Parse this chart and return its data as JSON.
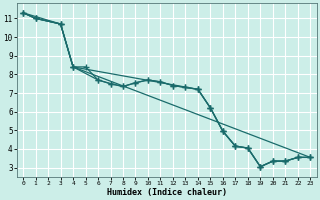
{
  "xlabel": "Humidex (Indice chaleur)",
  "xlim": [
    -0.5,
    23.5
  ],
  "ylim": [
    2.5,
    11.8
  ],
  "xticks": [
    0,
    1,
    2,
    3,
    4,
    5,
    6,
    7,
    8,
    9,
    10,
    11,
    12,
    13,
    14,
    15,
    16,
    17,
    18,
    19,
    20,
    21,
    22,
    23
  ],
  "yticks": [
    3,
    4,
    5,
    6,
    7,
    8,
    9,
    10,
    11
  ],
  "bg_color": "#cceee8",
  "line_color": "#1a6b6b",
  "grid_white_color": "#ffffff",
  "grid_pink_color": "#ddbbb8",
  "line1": {
    "x": [
      0,
      1,
      3,
      4,
      5,
      6,
      7,
      8,
      9,
      10,
      11,
      12,
      13,
      14,
      15,
      16,
      17,
      18,
      19,
      20,
      21,
      22,
      23
    ],
    "y": [
      11.3,
      11.0,
      10.7,
      8.4,
      8.4,
      7.7,
      7.5,
      7.35,
      7.55,
      7.7,
      7.6,
      7.4,
      7.3,
      7.2,
      6.2,
      4.95,
      4.15,
      4.05,
      3.05,
      3.35,
      3.35,
      3.55,
      3.55
    ]
  },
  "line2": {
    "x": [
      0,
      1,
      3,
      4,
      6,
      7,
      8,
      9,
      10,
      11,
      12,
      13,
      14,
      15,
      16,
      17,
      18,
      19,
      20,
      21,
      22,
      23
    ],
    "y": [
      11.3,
      11.0,
      10.7,
      8.4,
      7.7,
      7.5,
      7.35,
      7.55,
      7.7,
      7.6,
      7.4,
      7.3,
      7.2,
      6.2,
      4.95,
      4.15,
      4.05,
      3.05,
      3.35,
      3.35,
      3.55,
      3.55
    ]
  },
  "line3": {
    "x": [
      0,
      1,
      3,
      4,
      14,
      15,
      16,
      17,
      18,
      19,
      20,
      21,
      22,
      23
    ],
    "y": [
      11.3,
      11.0,
      10.7,
      8.4,
      7.2,
      6.2,
      4.95,
      4.15,
      4.05,
      3.05,
      3.35,
      3.35,
      3.55,
      3.55
    ]
  },
  "line4": {
    "x": [
      0,
      3,
      4,
      23
    ],
    "y": [
      11.3,
      10.7,
      8.4,
      3.55
    ]
  }
}
